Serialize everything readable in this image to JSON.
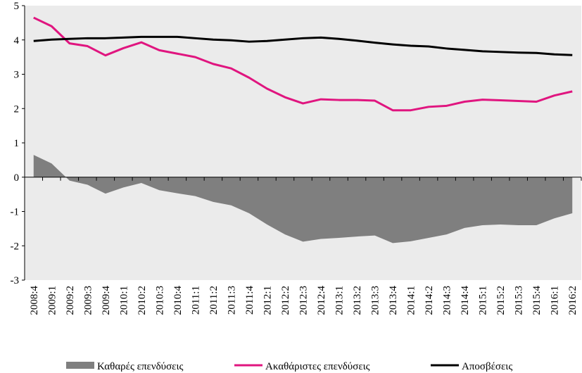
{
  "chart_data": {
    "type": "line",
    "title": "",
    "xlabel": "",
    "ylabel": "",
    "ylim": [
      -3,
      5
    ],
    "yticks": [
      "5",
      "4",
      "3",
      "2",
      "1",
      "0",
      "-1",
      "-2",
      "-3"
    ],
    "grid": false,
    "legend_position": "bottom",
    "plot_background": "#ebebeb",
    "categories": [
      "2008:4",
      "2009:1",
      "2009:2",
      "2009:3",
      "2009:4",
      "2010:1",
      "2010:2",
      "2010:3",
      "2010:4",
      "2011:1",
      "2011:2",
      "2011:3",
      "2011:4",
      "2012:1",
      "2012:2",
      "2012:3",
      "2012:4",
      "2013:1",
      "2013:2",
      "2013:3",
      "2013:4",
      "2014:1",
      "2014:2",
      "2014:3",
      "2014:4",
      "2015:1",
      "2015:2",
      "2015:3",
      "2015:4",
      "2016:1",
      "2016:2"
    ],
    "series": [
      {
        "name": "Καθαρές επενδύσεις",
        "kind": "area",
        "color": "#7f7f7f",
        "values": [
          0.65,
          0.4,
          -0.1,
          -0.22,
          -0.48,
          -0.3,
          -0.17,
          -0.38,
          -0.47,
          -0.55,
          -0.72,
          -0.82,
          -1.05,
          -1.38,
          -1.67,
          -1.88,
          -1.8,
          -1.77,
          -1.73,
          -1.7,
          -1.92,
          -1.87,
          -1.77,
          -1.67,
          -1.48,
          -1.4,
          -1.38,
          -1.4,
          -1.4,
          -1.2,
          -1.05
        ]
      },
      {
        "name": "Ακαθάριστες επενδύσεις",
        "kind": "line",
        "color": "#e0157f",
        "values": [
          4.65,
          4.4,
          3.9,
          3.82,
          3.55,
          3.76,
          3.93,
          3.7,
          3.6,
          3.5,
          3.3,
          3.17,
          2.9,
          2.58,
          2.33,
          2.15,
          2.27,
          2.25,
          2.25,
          2.23,
          1.95,
          1.95,
          2.05,
          2.08,
          2.2,
          2.26,
          2.24,
          2.22,
          2.2,
          2.38,
          2.5
        ]
      },
      {
        "name": "Αποσβέσεις",
        "kind": "line",
        "color": "#000000",
        "values": [
          3.97,
          4.01,
          4.03,
          4.05,
          4.05,
          4.07,
          4.09,
          4.09,
          4.09,
          4.05,
          4.01,
          3.99,
          3.95,
          3.97,
          4.01,
          4.05,
          4.07,
          4.03,
          3.98,
          3.92,
          3.87,
          3.83,
          3.81,
          3.75,
          3.71,
          3.67,
          3.65,
          3.63,
          3.62,
          3.58,
          3.56
        ]
      }
    ]
  }
}
